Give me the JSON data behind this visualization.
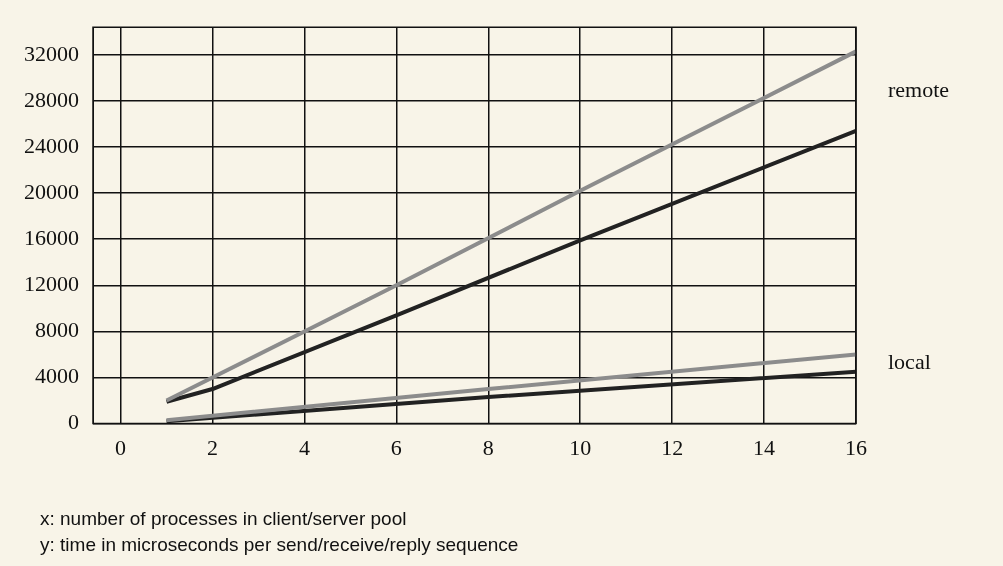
{
  "chart_data": {
    "type": "line",
    "xlabel": "x: number of processes in client/server pool",
    "ylabel": "y: time in microseconds per send/receive/reply sequence",
    "xlim": [
      -0.6,
      16
    ],
    "xticks": [
      0,
      2,
      4,
      6,
      8,
      10,
      12,
      14,
      16
    ],
    "ylim": [
      0,
      34400
    ],
    "yticks": [
      0,
      4000,
      8000,
      12000,
      16000,
      20000,
      24000,
      28000,
      32000
    ],
    "grid": true,
    "legend": false,
    "marker": "none",
    "line_style": "solid",
    "series": [
      {
        "color": "#8c8c8c",
        "x": [
          1,
          4,
          6,
          10,
          16
        ],
        "values": [
          2000,
          8000,
          12000,
          20200,
          32300
        ]
      },
      {
        "color": "#222222",
        "x": [
          1,
          2,
          6,
          10,
          16
        ],
        "values": [
          1900,
          3000,
          9400,
          15900,
          25400
        ]
      },
      {
        "color": "#8c8c8c",
        "x": [
          1,
          8,
          16
        ],
        "values": [
          300,
          3000,
          6000
        ]
      },
      {
        "color": "#222222",
        "x": [
          1,
          8,
          16
        ],
        "values": [
          200,
          2300,
          4500
        ]
      }
    ],
    "annotations": [
      "remote",
      "local"
    ]
  }
}
